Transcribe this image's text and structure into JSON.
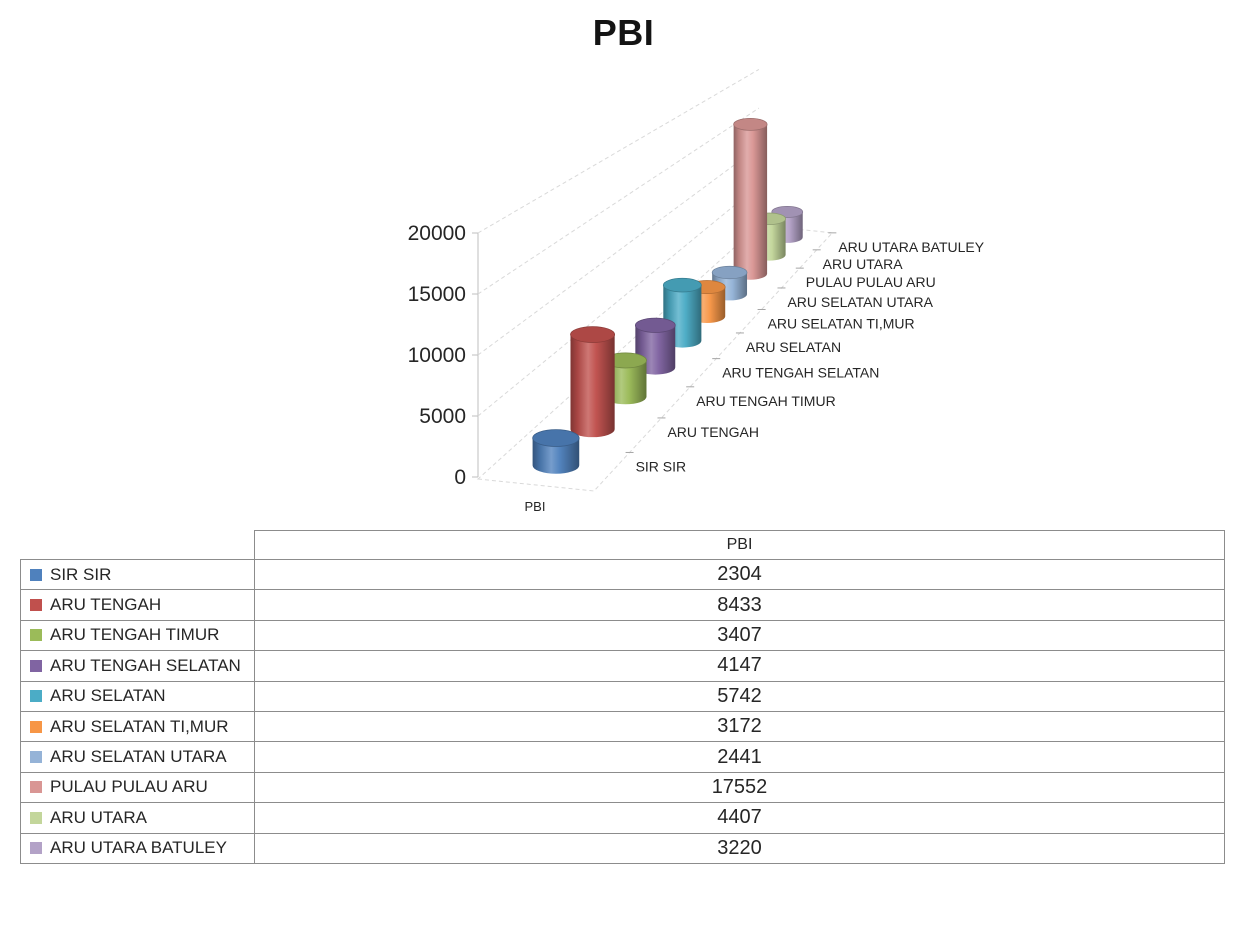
{
  "title": "PBI",
  "chart_data": {
    "type": "bar",
    "subtype": "cylinder-3d",
    "title": "PBI",
    "categories": [
      "SIR SIR",
      "ARU TENGAH",
      "ARU TENGAH TIMUR",
      "ARU TENGAH SELATAN",
      "ARU SELATAN",
      "ARU SELATAN TI,MUR",
      "ARU SELATAN UTARA",
      "PULAU PULAU ARU",
      "ARU UTARA",
      "ARU UTARA BATULEY"
    ],
    "series": [
      {
        "name": "PBI",
        "values": [
          2304,
          8433,
          3407,
          4147,
          5742,
          3172,
          2441,
          17552,
          4407,
          3220
        ]
      }
    ],
    "series_axis_label": "PBI",
    "xlabel": "",
    "ylabel": "",
    "ylim": [
      0,
      20000
    ],
    "yticks": [
      0,
      5000,
      10000,
      15000,
      20000
    ],
    "grid": "dashed",
    "legend_position": "table-below",
    "colors": [
      "#4F81BD",
      "#C0504D",
      "#9BBB59",
      "#8064A2",
      "#4BACC6",
      "#F79646",
      "#95B3D7",
      "#D99694",
      "#C3D69B",
      "#B3A2C7"
    ]
  },
  "table": {
    "header_label": "PBI"
  },
  "theme": {
    "background": "#FFFFFF",
    "text_color": "#262626",
    "grid_color": "#D9D9D9",
    "axis_line_color": "#BFBFBF",
    "tick_color": "#A6A6A6",
    "table_border_color": "#8C8C8C"
  }
}
